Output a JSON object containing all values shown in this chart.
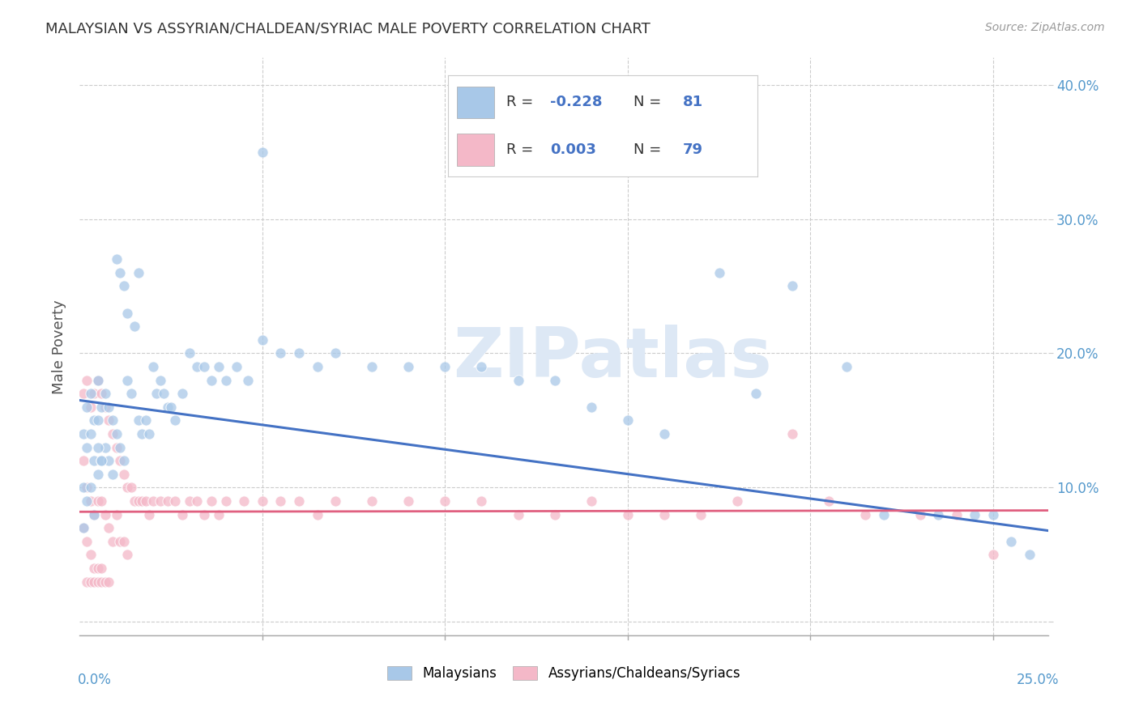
{
  "title": "MALAYSIAN VS ASSYRIAN/CHALDEAN/SYRIAC MALE POVERTY CORRELATION CHART",
  "source": "Source: ZipAtlas.com",
  "ylabel": "Male Poverty",
  "xlim": [
    0.0,
    0.265
  ],
  "ylim": [
    -0.01,
    0.42
  ],
  "xticks": [
    0.0,
    0.05,
    0.1,
    0.15,
    0.2,
    0.25
  ],
  "yticks": [
    0.0,
    0.1,
    0.2,
    0.3,
    0.4
  ],
  "legend_label1": "Malaysians",
  "legend_label2": "Assyrians/Chaldeans/Syriacs",
  "R1": -0.228,
  "N1": 81,
  "R2": 0.003,
  "N2": 79,
  "color1": "#a8c8e8",
  "color2": "#f4b8c8",
  "line_color1": "#4472c4",
  "line_color2": "#e06080",
  "background_color": "#ffffff",
  "grid_color": "#cccccc",
  "title_color": "#333333",
  "tick_color": "#5599cc",
  "ylabel_color": "#555555",
  "watermark": "ZIPatlas",
  "watermark_color": "#dde8f5",
  "mal_line_x0": 0.0,
  "mal_line_y0": 0.165,
  "mal_line_x1": 0.265,
  "mal_line_y1": 0.068,
  "ass_line_x0": 0.0,
  "ass_line_y0": 0.082,
  "ass_line_x1": 0.265,
  "ass_line_y1": 0.083,
  "malaysian_x": [
    0.001,
    0.001,
    0.001,
    0.002,
    0.002,
    0.002,
    0.003,
    0.003,
    0.003,
    0.004,
    0.004,
    0.004,
    0.005,
    0.005,
    0.005,
    0.006,
    0.006,
    0.007,
    0.007,
    0.008,
    0.008,
    0.009,
    0.009,
    0.01,
    0.01,
    0.011,
    0.011,
    0.012,
    0.012,
    0.013,
    0.013,
    0.014,
    0.015,
    0.016,
    0.016,
    0.017,
    0.018,
    0.019,
    0.02,
    0.021,
    0.022,
    0.023,
    0.024,
    0.025,
    0.026,
    0.028,
    0.03,
    0.032,
    0.034,
    0.036,
    0.038,
    0.04,
    0.043,
    0.046,
    0.05,
    0.055,
    0.06,
    0.065,
    0.07,
    0.08,
    0.09,
    0.1,
    0.11,
    0.12,
    0.13,
    0.14,
    0.15,
    0.16,
    0.175,
    0.185,
    0.195,
    0.21,
    0.22,
    0.235,
    0.245,
    0.25,
    0.255,
    0.26,
    0.005,
    0.006,
    0.05
  ],
  "malaysian_y": [
    0.14,
    0.1,
    0.07,
    0.16,
    0.13,
    0.09,
    0.17,
    0.14,
    0.1,
    0.15,
    0.12,
    0.08,
    0.18,
    0.15,
    0.11,
    0.16,
    0.12,
    0.17,
    0.13,
    0.16,
    0.12,
    0.15,
    0.11,
    0.27,
    0.14,
    0.26,
    0.13,
    0.25,
    0.12,
    0.23,
    0.18,
    0.17,
    0.22,
    0.26,
    0.15,
    0.14,
    0.15,
    0.14,
    0.19,
    0.17,
    0.18,
    0.17,
    0.16,
    0.16,
    0.15,
    0.17,
    0.2,
    0.19,
    0.19,
    0.18,
    0.19,
    0.18,
    0.19,
    0.18,
    0.35,
    0.2,
    0.2,
    0.19,
    0.2,
    0.19,
    0.19,
    0.19,
    0.19,
    0.18,
    0.18,
    0.16,
    0.15,
    0.14,
    0.26,
    0.17,
    0.25,
    0.19,
    0.08,
    0.08,
    0.08,
    0.08,
    0.06,
    0.05,
    0.13,
    0.12,
    0.21
  ],
  "assyrian_x": [
    0.001,
    0.001,
    0.001,
    0.002,
    0.002,
    0.002,
    0.003,
    0.003,
    0.003,
    0.004,
    0.004,
    0.004,
    0.005,
    0.005,
    0.005,
    0.006,
    0.006,
    0.006,
    0.007,
    0.007,
    0.008,
    0.008,
    0.009,
    0.009,
    0.01,
    0.01,
    0.011,
    0.011,
    0.012,
    0.012,
    0.013,
    0.013,
    0.014,
    0.015,
    0.016,
    0.017,
    0.018,
    0.019,
    0.02,
    0.022,
    0.024,
    0.026,
    0.028,
    0.03,
    0.032,
    0.034,
    0.036,
    0.038,
    0.04,
    0.045,
    0.05,
    0.055,
    0.06,
    0.065,
    0.07,
    0.08,
    0.09,
    0.1,
    0.11,
    0.12,
    0.13,
    0.14,
    0.15,
    0.16,
    0.17,
    0.18,
    0.195,
    0.205,
    0.215,
    0.23,
    0.24,
    0.25,
    0.002,
    0.003,
    0.004,
    0.005,
    0.006,
    0.007,
    0.008
  ],
  "assyrian_y": [
    0.17,
    0.12,
    0.07,
    0.18,
    0.1,
    0.06,
    0.16,
    0.09,
    0.05,
    0.17,
    0.08,
    0.04,
    0.18,
    0.09,
    0.04,
    0.17,
    0.09,
    0.04,
    0.16,
    0.08,
    0.15,
    0.07,
    0.14,
    0.06,
    0.13,
    0.08,
    0.12,
    0.06,
    0.11,
    0.06,
    0.1,
    0.05,
    0.1,
    0.09,
    0.09,
    0.09,
    0.09,
    0.08,
    0.09,
    0.09,
    0.09,
    0.09,
    0.08,
    0.09,
    0.09,
    0.08,
    0.09,
    0.08,
    0.09,
    0.09,
    0.09,
    0.09,
    0.09,
    0.08,
    0.09,
    0.09,
    0.09,
    0.09,
    0.09,
    0.08,
    0.08,
    0.09,
    0.08,
    0.08,
    0.08,
    0.09,
    0.14,
    0.09,
    0.08,
    0.08,
    0.08,
    0.05,
    0.03,
    0.03,
    0.03,
    0.03,
    0.03,
    0.03,
    0.03
  ]
}
